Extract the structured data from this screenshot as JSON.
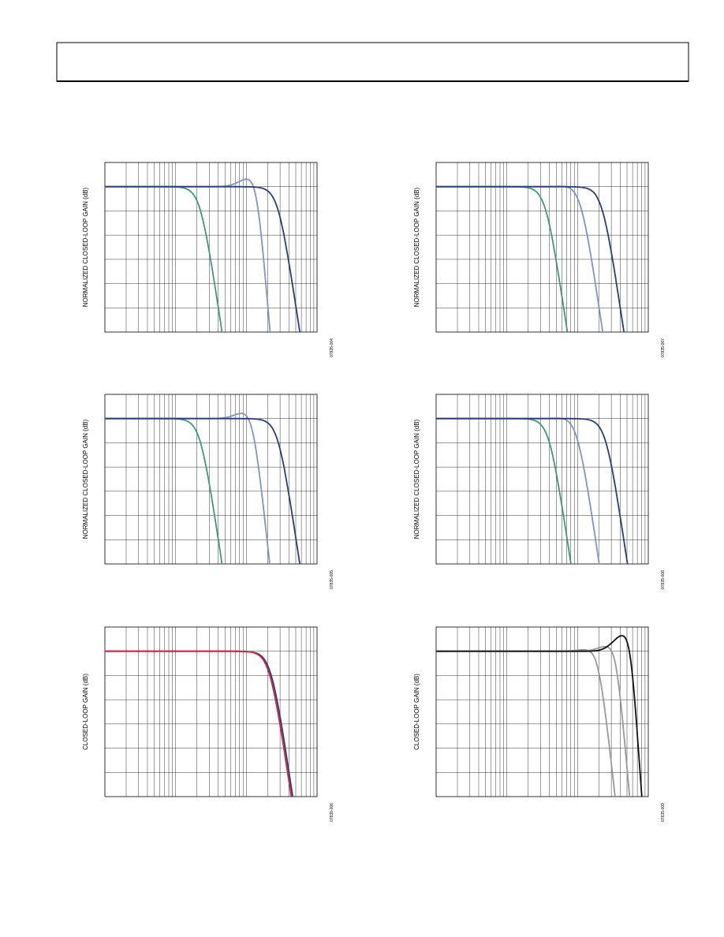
{
  "figures": [
    {
      "y_axis_label": "NORMALIZED CLOSED-LOOP GAIN (dB)",
      "figure_code": "07835-004"
    },
    {
      "y_axis_label": "NORMALIZED CLOSED-LOOP GAIN (dB)",
      "figure_code": "07835-007"
    },
    {
      "y_axis_label": "NORMALIZED CLOSED-LOOP GAIN (dB)",
      "figure_code": "07835-005"
    },
    {
      "y_axis_label": "NORMALIZED CLOSED-LOOP GAIN (dB)",
      "figure_code": "07835-008"
    },
    {
      "y_axis_label": "CLOSED-LOOP GAIN (dB)",
      "figure_code": "07835-006"
    },
    {
      "y_axis_label": "CLOSED-LOOP GAIN (dB)",
      "figure_code": "07835-009"
    }
  ]
}
